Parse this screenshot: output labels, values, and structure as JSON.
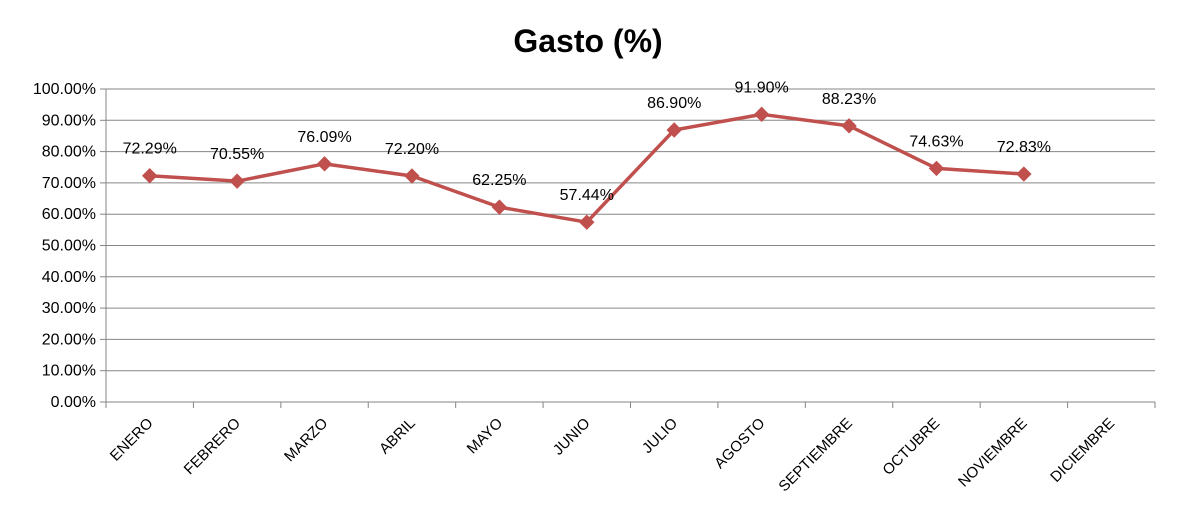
{
  "chart_data": {
    "type": "line",
    "title": "Gasto (%)",
    "xlabel": "",
    "ylabel": "",
    "categories": [
      "ENERO",
      "FEBRERO",
      "MARZO",
      "ABRIL",
      "MAYO",
      "JUNIO",
      "JULIO",
      "AGOSTO",
      "SEPTIEMBRE",
      "OCTUBRE",
      "NOVIEMBRE",
      "DICIEMBRE"
    ],
    "series": [
      {
        "values": [
          72.29,
          70.55,
          76.09,
          72.2,
          62.25,
          57.44,
          86.9,
          91.9,
          88.23,
          74.63,
          72.83,
          null
        ],
        "labels": [
          "72.29%",
          "70.55%",
          "76.09%",
          "72.20%",
          "62.25%",
          "57.44%",
          "86.90%",
          "91.90%",
          "88.23%",
          "74.63%",
          "72.83%",
          ""
        ],
        "color": "#C0504D",
        "marker": "diamond"
      }
    ],
    "ylim": [
      0,
      100
    ],
    "yticks": [
      "0.00%",
      "10.00%",
      "20.00%",
      "30.00%",
      "40.00%",
      "50.00%",
      "60.00%",
      "70.00%",
      "80.00%",
      "90.00%",
      "100.00%"
    ],
    "grid": true,
    "legend": "none",
    "gridline_color": "#868686"
  }
}
